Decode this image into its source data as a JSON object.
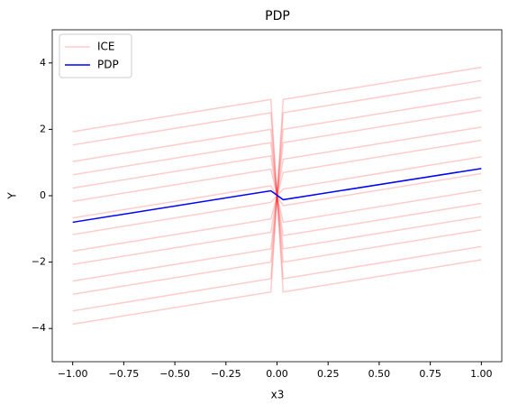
{
  "chart_data": {
    "type": "line",
    "title": "PDP",
    "xlabel": "x3",
    "ylabel": "Y",
    "x": [
      -1,
      -0.03,
      0.03,
      1
    ],
    "series": [
      {
        "name": "ICE",
        "color": "#ff0000",
        "opacity": 0.2,
        "lines": [
          [
            1.93,
            2.9,
            -2.9,
            -1.93
          ],
          [
            1.53,
            2.5,
            -2.5,
            -1.53
          ],
          [
            1.03,
            2,
            -2,
            -1.03
          ],
          [
            0.63,
            1.6,
            -1.6,
            -0.63
          ],
          [
            0.23,
            1.2,
            -1.2,
            -0.23
          ],
          [
            -0.17,
            0.8,
            -0.8,
            0.17
          ],
          [
            -0.67,
            0.3,
            -0.3,
            0.67
          ],
          [
            -1.17,
            -0.2,
            0.2,
            1.17
          ],
          [
            -1.67,
            -0.7,
            0.7,
            1.67
          ],
          [
            -2.07,
            -1.1,
            1.1,
            2.07
          ],
          [
            -2.57,
            -1.6,
            1.6,
            2.57
          ],
          [
            -2.97,
            -2,
            2,
            2.97
          ],
          [
            -3.47,
            -2.5,
            2.5,
            3.47
          ],
          [
            -3.87,
            -2.9,
            2.9,
            3.87
          ]
        ]
      },
      {
        "name": "PDP",
        "color": "#0000ff",
        "values": [
          -0.8,
          0.15,
          -0.12,
          0.82
        ]
      }
    ],
    "xlim": [
      -1.1,
      1.1
    ],
    "xticks": [
      {
        "value": -1,
        "label": "−1.00"
      },
      {
        "value": -0.75,
        "label": "−0.75"
      },
      {
        "value": -0.5,
        "label": "−0.50"
      },
      {
        "value": -0.25,
        "label": "−0.25"
      },
      {
        "value": 0,
        "label": "0.00"
      },
      {
        "value": 0.25,
        "label": "0.25"
      },
      {
        "value": 0.5,
        "label": "0.50"
      },
      {
        "value": 0.75,
        "label": "0.75"
      },
      {
        "value": 1,
        "label": "1.00"
      }
    ],
    "ylim": [
      -5,
      5
    ],
    "yticks": [
      {
        "value": -4,
        "label": "−4"
      },
      {
        "value": -2,
        "label": "−2"
      },
      0,
      2,
      4
    ],
    "legend": "upper left",
    "grid": false
  }
}
